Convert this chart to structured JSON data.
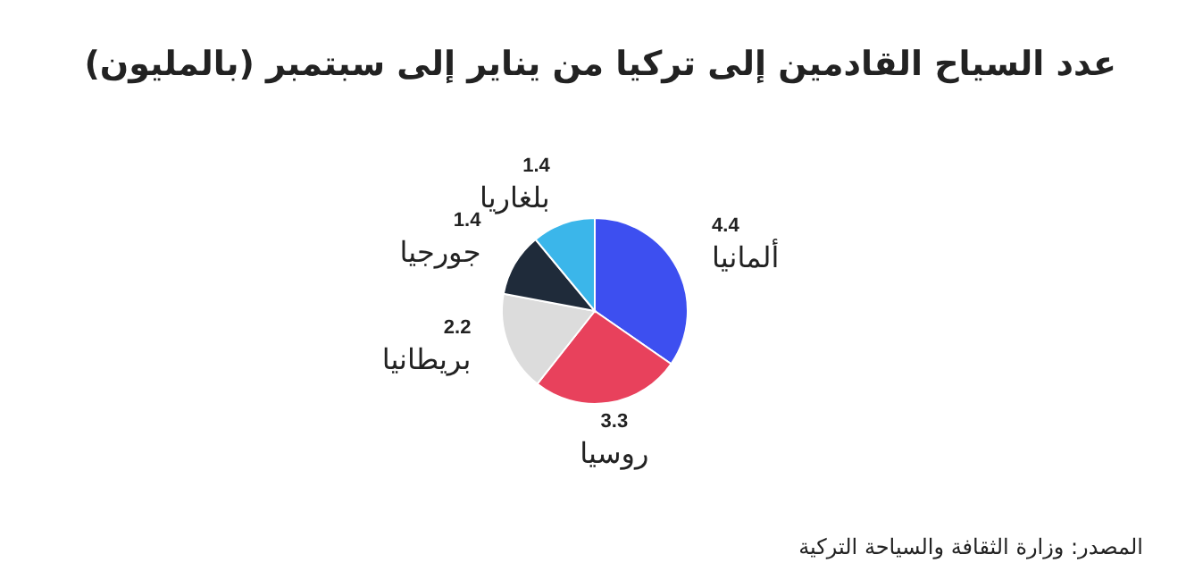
{
  "chart_data": {
    "type": "pie",
    "title": "عدد السياح القادمين إلى تركيا من يناير إلى سبتمبر (بالمليون)",
    "categories": [
      "ألمانيا",
      "روسيا",
      "بريطانيا",
      "جورجيا",
      "بلغاريا"
    ],
    "values": [
      4.4,
      3.3,
      2.2,
      1.4,
      1.4
    ],
    "colors": [
      "#3d4ff0",
      "#e8415c",
      "#dcdcdc",
      "#1f2b3a",
      "#3bb6ea"
    ],
    "data_labels": true,
    "annotations": [
      "المصدر: وزارة الثقافة والسياحة التركية"
    ]
  }
}
